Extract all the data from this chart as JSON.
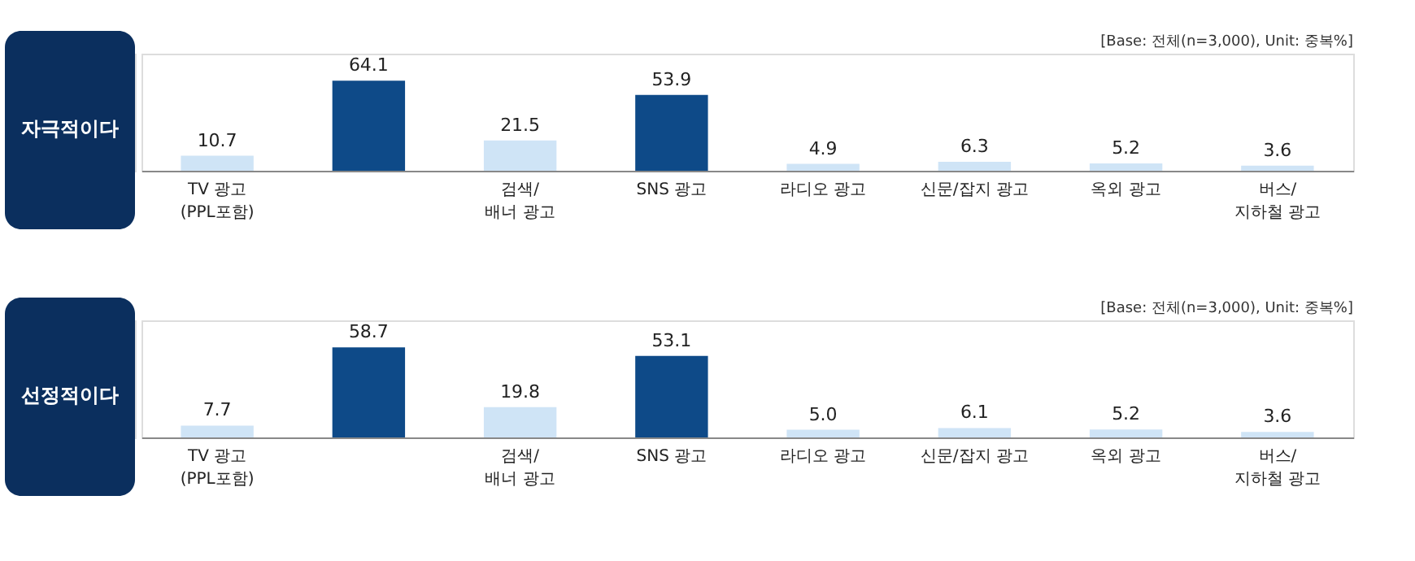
{
  "chart_data": [
    {
      "type": "bar",
      "title": "자극적이다",
      "annotations": [
        "[Base: 전체(n=3,000), Unit: 중복%]"
      ],
      "categories": [
        "TV 광고\n(PPL포함)",
        null,
        "검색/\n배너 광고",
        "SNS 광고",
        "라디오 광고",
        "신문/잡지 광고",
        "옥외 광고",
        "버스/\n지하철 광고"
      ],
      "values": [
        10.7,
        64.1,
        21.5,
        53.9,
        4.9,
        6.3,
        5.2,
        3.6
      ],
      "colors": [
        "#cfe4f6",
        "#0e4a88",
        "#cfe4f6",
        "#0e4a88",
        "#cfe4f6",
        "#cfe4f6",
        "#cfe4f6",
        "#cfe4f6"
      ],
      "data_labels": true,
      "grid": false,
      "tick_labels": "x"
    },
    {
      "type": "bar",
      "title": "선정적이다",
      "annotations": [
        "[Base: 전체(n=3,000), Unit: 중복%]"
      ],
      "categories": [
        "TV 광고\n(PPL포함)",
        null,
        "검색/\n배너 광고",
        "SNS 광고",
        "라디오 광고",
        "신문/잡지 광고",
        "옥외 광고",
        "버스/\n지하철 광고"
      ],
      "values": [
        7.7,
        58.7,
        19.8,
        53.1,
        5.0,
        6.1,
        5.2,
        3.6
      ],
      "value_labels": [
        "7.7",
        "58.7",
        "19.8",
        "53.1",
        "5.0",
        "6.1",
        "5.2",
        "3.6"
      ],
      "colors": [
        "#cfe4f6",
        "#0e4a88",
        "#cfe4f6",
        "#0e4a88",
        "#cfe4f6",
        "#cfe4f6",
        "#cfe4f6",
        "#cfe4f6"
      ],
      "grid": false,
      "tick_labels": "x"
    }
  ]
}
